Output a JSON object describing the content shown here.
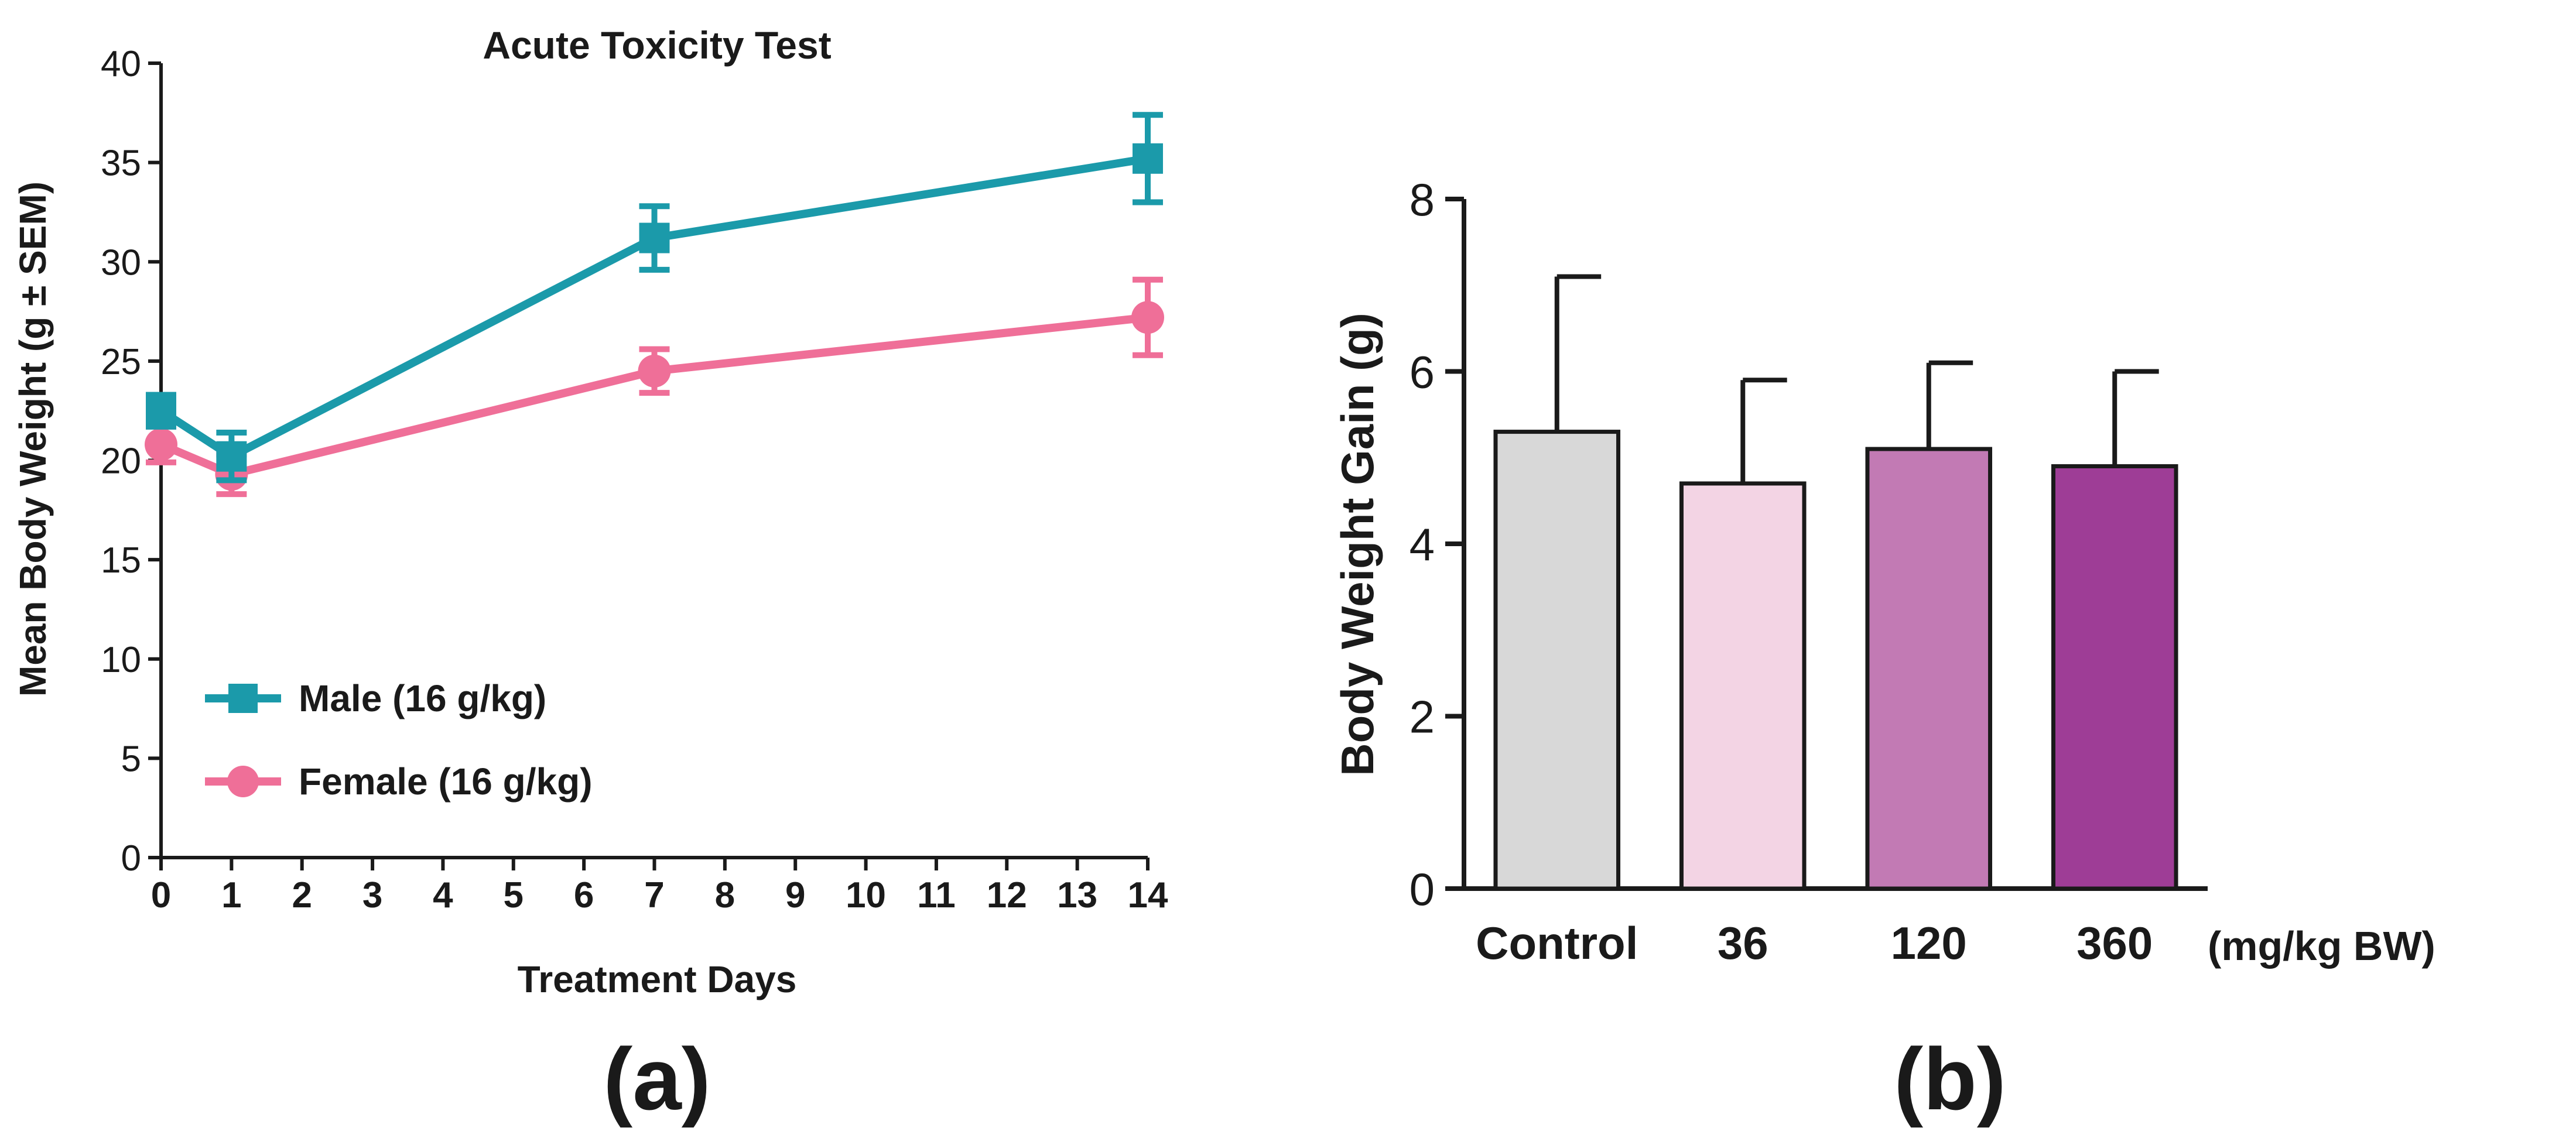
{
  "chart_data": [
    {
      "type": "line",
      "panel_label": "(a)",
      "title": "Acute Toxicity Test",
      "xlabel": "Treatment Days",
      "ylabel": "Mean Body Weight (g ± SEM)",
      "xlim": [
        0,
        14
      ],
      "ylim": [
        0,
        40
      ],
      "xticks": [
        "0",
        "1",
        "2",
        "3",
        "4",
        "5",
        "6",
        "7",
        "8",
        "9",
        "10",
        "11",
        "12",
        "13",
        "14"
      ],
      "yticks": [
        "0",
        "5",
        "10",
        "15",
        "20",
        "25",
        "30",
        "35",
        "40"
      ],
      "grid": false,
      "legend_position": "lower-left",
      "series": [
        {
          "name": "Male (16 g/kg)",
          "color": "#1b9aaa",
          "marker": "square",
          "x": [
            0,
            1,
            7,
            14
          ],
          "y": [
            22.5,
            20.2,
            31.2,
            35.2
          ],
          "err": [
            0.8,
            1.2,
            1.6,
            2.2
          ]
        },
        {
          "name": "Female (16 g/kg)",
          "color": "#ef6f98",
          "marker": "circle",
          "x": [
            0,
            1,
            7,
            14
          ],
          "y": [
            20.8,
            19.3,
            24.5,
            27.2
          ],
          "err": [
            0.9,
            1.0,
            1.1,
            1.9
          ]
        }
      ]
    },
    {
      "type": "bar",
      "panel_label": "(b)",
      "title": "",
      "xlabel": "",
      "ylabel": "Body Weight Gain (g)",
      "unit_label": "(mg/kg BW)",
      "ylim": [
        0,
        8
      ],
      "yticks": [
        "0",
        "2",
        "4",
        "6",
        "8"
      ],
      "grid": false,
      "categories": [
        "Control",
        "36",
        "120",
        "360"
      ],
      "values": [
        5.3,
        4.7,
        5.1,
        4.9
      ],
      "err": [
        1.8,
        1.2,
        1.0,
        1.1
      ],
      "colors": [
        "#d8d8d8",
        "#f3d4e4",
        "#c27ab4",
        "#9e3d96"
      ]
    }
  ]
}
